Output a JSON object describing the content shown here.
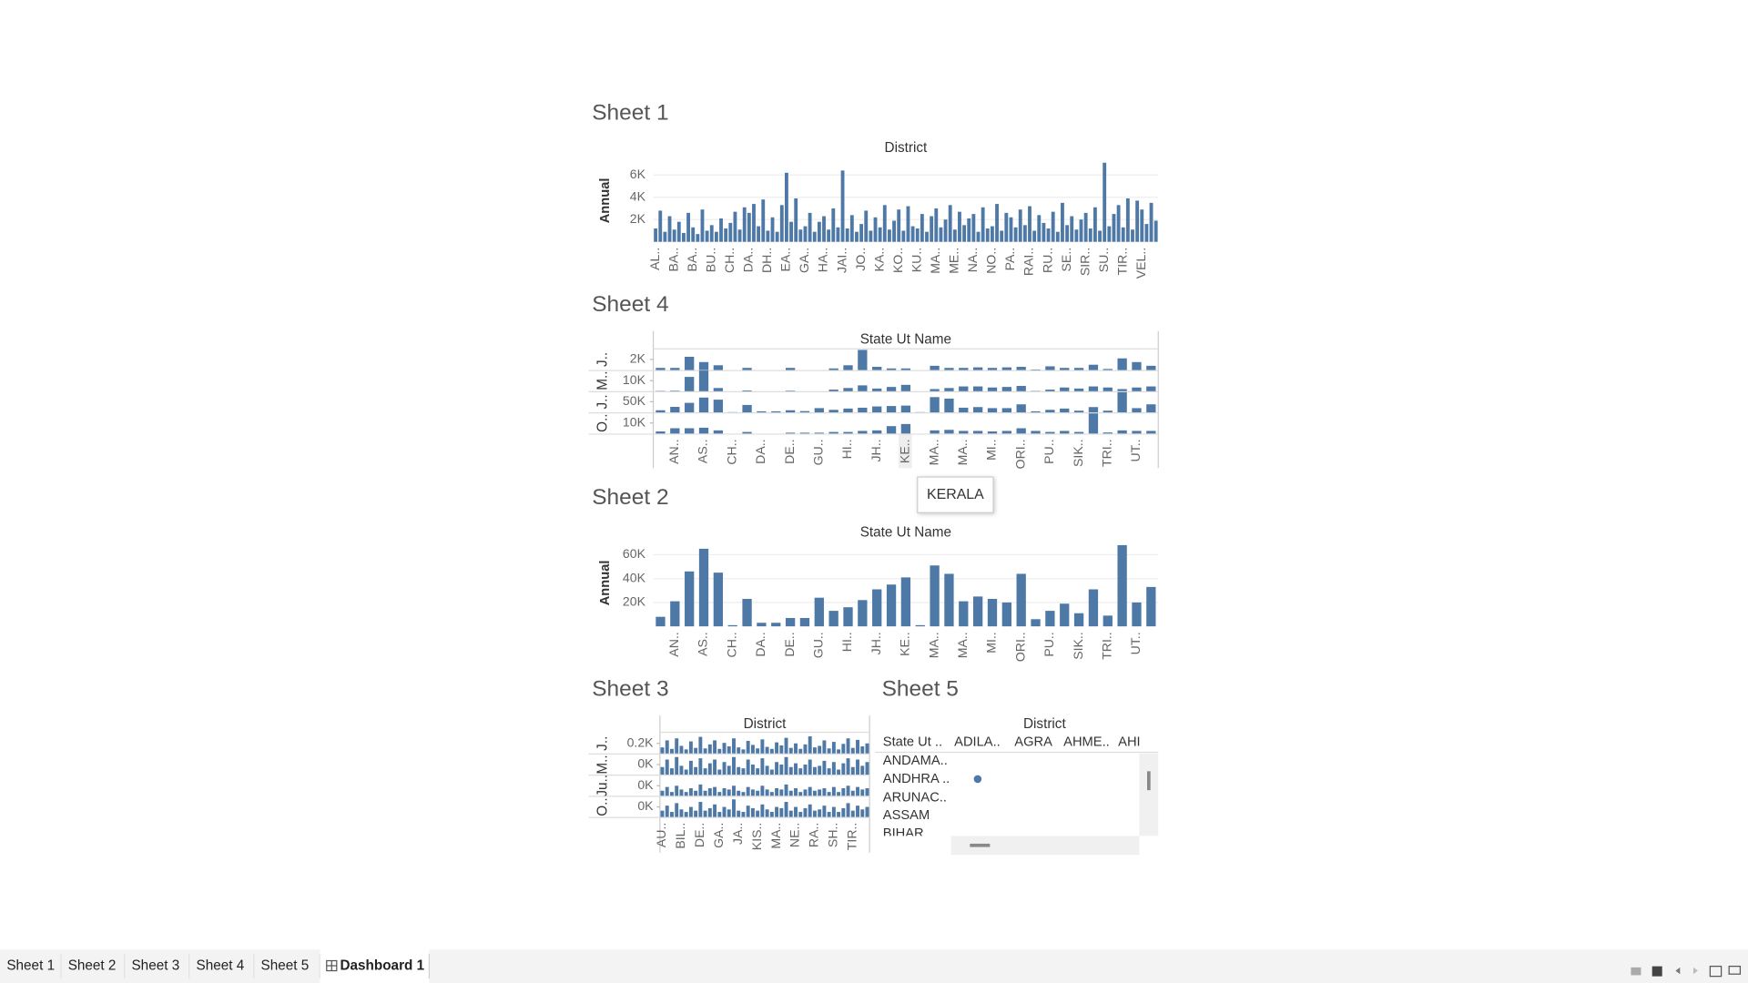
{
  "chart_data": [
    {
      "title": "Sheet 1",
      "type": "bar",
      "header": "District",
      "y_label": "Annual",
      "color": "#4e79a7",
      "grid": true,
      "categories": [
        "AL..",
        null,
        null,
        null,
        "BA..",
        null,
        null,
        null,
        "BA..",
        null,
        null,
        null,
        "BU..",
        null,
        null,
        null,
        "CH..",
        null,
        null,
        null,
        "DA..",
        null,
        null,
        null,
        "DH..",
        null,
        null,
        null,
        "EA..",
        null,
        null,
        null,
        "GA..",
        null,
        null,
        null,
        "HA..",
        null,
        null,
        null,
        "JAI..",
        null,
        null,
        null,
        "JO..",
        null,
        null,
        null,
        "KA..",
        null,
        null,
        null,
        "KO..",
        null,
        null,
        null,
        "KU..",
        null,
        null,
        null,
        "MA..",
        null,
        null,
        null,
        "ME..",
        null,
        null,
        null,
        "NA..",
        null,
        null,
        null,
        "NO..",
        null,
        null,
        null,
        "PA..",
        null,
        null,
        null,
        "RAI..",
        null,
        null,
        null,
        "RU..",
        null,
        null,
        null,
        "SE..",
        null,
        null,
        null,
        "SIR..",
        null,
        null,
        null,
        "SU..",
        null,
        null,
        null,
        "TIR..",
        null,
        null,
        null,
        "VEL..",
        null,
        null,
        null
      ],
      "values": [
        1200,
        2800,
        900,
        2300,
        1100,
        1800,
        800,
        2600,
        1300,
        700,
        2900,
        1000,
        1500,
        900,
        2100,
        1200,
        1700,
        2700,
        1100,
        3100,
        2600,
        3400,
        1400,
        3800,
        1000,
        2200,
        900,
        3300,
        6200,
        1800,
        3900,
        1100,
        1400,
        2600,
        900,
        1800,
        2300,
        1100,
        3000,
        1300,
        6400,
        1200,
        2400,
        900,
        1600,
        2800,
        1000,
        2200,
        1300,
        3300,
        1100,
        1900,
        2900,
        1000,
        3200,
        1400,
        1200,
        2500,
        900,
        2300,
        3000,
        1300,
        2000,
        3300,
        1100,
        2700,
        1500,
        2100,
        2500,
        900,
        3100,
        1200,
        1400,
        3400,
        1000,
        2600,
        2200,
        1300,
        2900,
        1500,
        3200,
        1000,
        2400,
        1700,
        1200,
        2700,
        900,
        3500,
        1500,
        2300,
        1100,
        2000,
        2600,
        1200,
        3100,
        1000,
        7100,
        1400,
        2500,
        3300,
        1300,
        3900,
        1100,
        3700,
        2900,
        1600,
        3500,
        1900
      ],
      "ylim": [
        0,
        7500
      ],
      "yticks": [
        {
          "value": 2000,
          "label": "2K"
        },
        {
          "value": 4000,
          "label": "4K"
        },
        {
          "value": 6000,
          "label": "6K"
        }
      ]
    },
    {
      "title": "Sheet 4",
      "type": "bar",
      "header": "State Ut Name",
      "color": "#4e79a7",
      "grid": false,
      "categories": [
        null,
        "AN..",
        null,
        "AS..",
        null,
        "CH..",
        null,
        "DA..",
        null,
        "DE..",
        null,
        "GU..",
        null,
        "HI..",
        null,
        "JH..",
        null,
        "KE..",
        null,
        "MA..",
        null,
        "MA..",
        null,
        "MI..",
        null,
        "ORI..",
        null,
        "PU..",
        null,
        "SIK..",
        null,
        "TRI..",
        null,
        "UT..",
        null
      ],
      "rows": [
        {
          "name": "J..",
          "ylim": [
            0,
            4000
          ],
          "yticks": [
            {
              "value": 2000,
              "label": "2K"
            }
          ],
          "values": [
            400,
            400,
            2500,
            1500,
            900,
            0,
            400,
            0,
            0,
            400,
            0,
            0,
            300,
            900,
            3800,
            600,
            300,
            300,
            0,
            800,
            400,
            400,
            500,
            400,
            500,
            600,
            100,
            700,
            400,
            400,
            1000,
            200,
            2200,
            1500,
            800
          ]
        },
        {
          "name": "M..",
          "ylim": [
            0,
            20000
          ],
          "yticks": [
            {
              "value": 10000,
              "label": "10K"
            }
          ],
          "values": [
            300,
            500,
            13500,
            19500,
            3000,
            0,
            700,
            0,
            0,
            500,
            0,
            0,
            1500,
            3000,
            5500,
            2500,
            4000,
            6000,
            0,
            2000,
            3000,
            4500,
            4500,
            3500,
            4000,
            5000,
            300,
            1500,
            3500,
            2500,
            4500,
            3500,
            2000,
            3500,
            4500
          ]
        },
        {
          "name": "J..",
          "ylim": [
            0,
            100000
          ],
          "yticks": [
            {
              "value": 50000,
              "label": "50K"
            }
          ],
          "values": [
            10000,
            26000,
            45000,
            70000,
            60000,
            1000,
            35000,
            5000,
            5000,
            10000,
            6000,
            20000,
            12000,
            18000,
            22000,
            28000,
            30000,
            32000,
            1000,
            72000,
            65000,
            22000,
            25000,
            20000,
            20000,
            38000,
            5000,
            12000,
            18000,
            8000,
            25000,
            8000,
            95000,
            20000,
            38000
          ]
        },
        {
          "name": "O..",
          "ylim": [
            0,
            20000
          ],
          "yticks": [
            {
              "value": 10000,
              "label": "10K"
            }
          ],
          "values": [
            2000,
            5000,
            5000,
            5500,
            3000,
            0,
            1500,
            0,
            0,
            800,
            800,
            800,
            1500,
            1500,
            2500,
            3000,
            7000,
            9000,
            0,
            3000,
            3500,
            2500,
            2500,
            2000,
            2500,
            5000,
            2500,
            1500,
            2500,
            1500,
            19000,
            1000,
            3000,
            2500,
            2500
          ]
        }
      ]
    },
    {
      "title": "Sheet 2",
      "type": "bar",
      "header": "State Ut Name",
      "y_label": "Annual",
      "color": "#4e79a7",
      "grid": true,
      "categories": [
        null,
        "AN..",
        null,
        "AS..",
        null,
        "CH..",
        null,
        "DA..",
        null,
        "DE..",
        null,
        "GU..",
        null,
        "HI..",
        null,
        "JH..",
        null,
        "KE..",
        null,
        "MA..",
        null,
        "MA..",
        null,
        "MI..",
        null,
        "ORI..",
        null,
        "PU..",
        null,
        "SIK..",
        null,
        "TRI..",
        null,
        "UT..",
        null
      ],
      "values": [
        8000,
        21000,
        46000,
        65000,
        45000,
        1000,
        23000,
        3000,
        3000,
        7000,
        7000,
        24000,
        13000,
        16000,
        22000,
        31000,
        35000,
        41000,
        1000,
        51000,
        44000,
        21000,
        25000,
        23000,
        20000,
        44000,
        6000,
        13000,
        19000,
        11000,
        31000,
        9000,
        68000,
        20000,
        33000
      ],
      "ylim": [
        0,
        70000
      ],
      "yticks": [
        {
          "value": 20000,
          "label": "20K"
        },
        {
          "value": 40000,
          "label": "40K"
        },
        {
          "value": 60000,
          "label": "60K"
        }
      ]
    },
    {
      "title": "Sheet 3",
      "type": "bar",
      "header": "District",
      "color": "#4e79a7",
      "grid": false,
      "categories": [
        "AU..",
        null,
        null,
        null,
        "BIL..",
        null,
        null,
        null,
        "DE..",
        null,
        null,
        null,
        "GA..",
        null,
        null,
        null,
        "JA..",
        null,
        null,
        null,
        "KIS..",
        null,
        null,
        null,
        "MA..",
        null,
        null,
        null,
        "NE..",
        null,
        null,
        null,
        "RA..",
        null,
        null,
        null,
        "SH..",
        null,
        null,
        null,
        "TIR..",
        null,
        null,
        null
      ],
      "rows": [
        {
          "name": "J..",
          "ylim": [
            0,
            400
          ],
          "yticks": [
            {
              "value": 200,
              "label": "0.2K"
            }
          ],
          "values": [
            120,
            260,
            90,
            300,
            150,
            80,
            240,
            110,
            330,
            100,
            180,
            260,
            90,
            210,
            140,
            300,
            120,
            80,
            250,
            170,
            100,
            280,
            130,
            90,
            220,
            160,
            310,
            110,
            200,
            90,
            180,
            340,
            120,
            150,
            260,
            100,
            230,
            80,
            190,
            300,
            110,
            270,
            140,
            200
          ]
        },
        {
          "name": "M..",
          "ylim": [
            0,
            800
          ],
          "yticks": [
            {
              "value": 400,
              "label": "0K"
            }
          ],
          "values": [
            300,
            600,
            250,
            700,
            350,
            200,
            550,
            300,
            650,
            250,
            450,
            600,
            200,
            500,
            350,
            700,
            300,
            250,
            600,
            400,
            250,
            650,
            350,
            200,
            500,
            400,
            700,
            300,
            450,
            250,
            400,
            600,
            300,
            350,
            550,
            250,
            500,
            200,
            450,
            650,
            300,
            600,
            350,
            500
          ]
        },
        {
          "name": "Ju..",
          "ylim": [
            0,
            800
          ],
          "yticks": [
            {
              "value": 400,
              "label": "0K"
            }
          ],
          "values": [
            200,
            350,
            150,
            400,
            250,
            150,
            300,
            200,
            450,
            200,
            300,
            350,
            150,
            300,
            250,
            400,
            200,
            150,
            350,
            250,
            200,
            400,
            250,
            150,
            300,
            250,
            450,
            200,
            300,
            150,
            250,
            350,
            200,
            250,
            300,
            150,
            350,
            150,
            300,
            400,
            200,
            350,
            250,
            300
          ]
        },
        {
          "name": "O..",
          "ylim": [
            0,
            800
          ],
          "yticks": [
            {
              "value": 400,
              "label": "0K"
            }
          ],
          "values": [
            250,
            450,
            200,
            550,
            300,
            200,
            400,
            250,
            600,
            250,
            350,
            500,
            200,
            400,
            300,
            700,
            250,
            200,
            450,
            350,
            250,
            500,
            300,
            200,
            400,
            350,
            600,
            250,
            400,
            200,
            350,
            500,
            250,
            300,
            450,
            200,
            400,
            200,
            350,
            550,
            250,
            450,
            300,
            400
          ]
        }
      ]
    }
  ],
  "sheet5": {
    "title": "Sheet 5",
    "header": "District",
    "row_header": "State Ut ..",
    "columns": [
      "ADILA..",
      "AGRA",
      "AHME..",
      "AHI"
    ],
    "rows": [
      "ANDAMA..",
      "ANDHRA ..",
      "ARUNAC..",
      "ASSAM",
      "BIHAR"
    ]
  },
  "tooltip": "KERALA",
  "tabs": [
    "Sheet 1",
    "Sheet 2",
    "Sheet 3",
    "Sheet 4",
    "Sheet 5",
    "Dashboard 1"
  ]
}
